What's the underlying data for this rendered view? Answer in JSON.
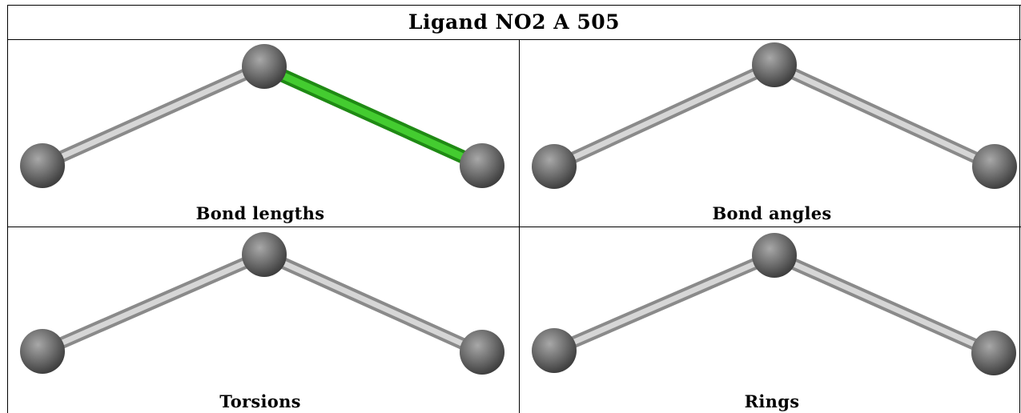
{
  "title": "Ligand NO2 A 505",
  "panels": [
    {
      "caption": "Bond lengths",
      "highlighted_bond": "right"
    },
    {
      "caption": "Bond angles",
      "highlighted_bond": "none"
    },
    {
      "caption": "Torsions",
      "highlighted_bond": "none"
    },
    {
      "caption": "Rings",
      "highlighted_bond": "none"
    }
  ],
  "colors": {
    "atom": "#6e6e6e",
    "bond": "#bdbdbd",
    "highlight_bond": "#33bb22",
    "border": "#000000"
  }
}
